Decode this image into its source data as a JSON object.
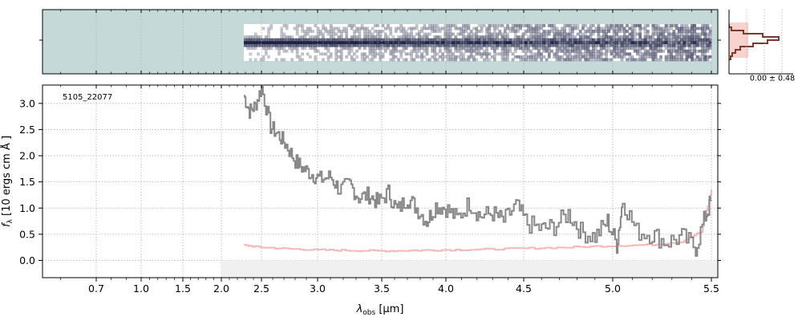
{
  "figure": {
    "object_label": "5105_22077",
    "sigma_label": "0.00 ± 0.48",
    "xlabel_main": "λ",
    "xlabel_sub": "obs",
    "xlabel_unit": " [μm]",
    "ylabel_main": "f",
    "ylabel_sub": "λ",
    "ylabel_unit": " [10   ergs  cm   Å  ]"
  },
  "colors": {
    "panel_fill": "#c5dad8",
    "flux_line": "#888888",
    "error_line": "#f5b8b8",
    "hist_line": "#7a3b2e",
    "hist_fill": "#f8d2cc",
    "grid": "#b0b0b0",
    "band": "#f0f0f0",
    "twod_dark": "#1f2445",
    "twod_light": "#ffffff"
  },
  "chart_data": [
    {
      "type": "line",
      "name": "1D spectrum",
      "xscale": "nonlinear wavelength scale",
      "xlim": [
        0.55,
        5.52
      ],
      "ylim": [
        -0.33,
        3.35
      ],
      "x_ticks": [
        0.7,
        1.0,
        1.5,
        2.0,
        2.5,
        3.0,
        3.5,
        4.0,
        4.5,
        5.0,
        5.5
      ],
      "x_tick_labels": [
        "0.7",
        "1.0",
        "1.5",
        "2.0",
        "2.5",
        "3.0",
        "3.5",
        "4.0",
        "4.5",
        "5.0",
        "5.5"
      ],
      "y_ticks": [
        0.0,
        0.5,
        1.0,
        1.5,
        2.0,
        2.5,
        3.0
      ],
      "y_tick_labels": [
        "0.0",
        "0.5",
        "1.0",
        "1.5",
        "2.0",
        "2.5",
        "3.0"
      ],
      "grid": true,
      "series": [
        {
          "role": "flux",
          "x": [
            2.28,
            2.35,
            2.42,
            2.5,
            2.58,
            2.65,
            2.72,
            2.8,
            2.87,
            2.95,
            3.02,
            3.1,
            3.17,
            3.25,
            3.32,
            3.4,
            3.47,
            3.55,
            3.62,
            3.7,
            3.77,
            3.85,
            3.92,
            4.0,
            4.07,
            4.15,
            4.22,
            4.3,
            4.37,
            4.45,
            4.52,
            4.6,
            4.67,
            4.75,
            4.82,
            4.9,
            4.97,
            5.02,
            5.05,
            5.12,
            5.2,
            5.27,
            5.35,
            5.42,
            5.47,
            5.5
          ],
          "values": [
            3.15,
            2.85,
            2.95,
            3.3,
            2.55,
            2.4,
            2.2,
            1.9,
            1.75,
            1.65,
            1.55,
            1.6,
            1.35,
            1.45,
            1.2,
            1.25,
            1.1,
            1.3,
            0.95,
            1.2,
            1.0,
            0.75,
            1.05,
            1.0,
            0.8,
            1.1,
            0.85,
            0.9,
            0.75,
            1.05,
            0.7,
            0.6,
            0.65,
            0.9,
            0.55,
            0.45,
            0.75,
            0.3,
            1.15,
            0.55,
            0.5,
            0.35,
            0.45,
            0.25,
            0.85,
            1.15
          ]
        },
        {
          "role": "error",
          "x": [
            2.28,
            2.5,
            2.75,
            3.0,
            3.25,
            3.5,
            3.75,
            4.0,
            4.25,
            4.5,
            4.75,
            5.0,
            5.2,
            5.35,
            5.45,
            5.5
          ],
          "values": [
            0.29,
            0.25,
            0.22,
            0.2,
            0.19,
            0.18,
            0.19,
            0.2,
            0.21,
            0.23,
            0.25,
            0.28,
            0.3,
            0.36,
            0.55,
            1.35
          ]
        }
      ]
    },
    {
      "type": "heatmap",
      "name": "2D spectrum",
      "x_range": [
        2.28,
        5.5
      ]
    },
    {
      "type": "histogram",
      "name": "pixel distribution",
      "annotation": "0.00 ± 0.48"
    }
  ]
}
